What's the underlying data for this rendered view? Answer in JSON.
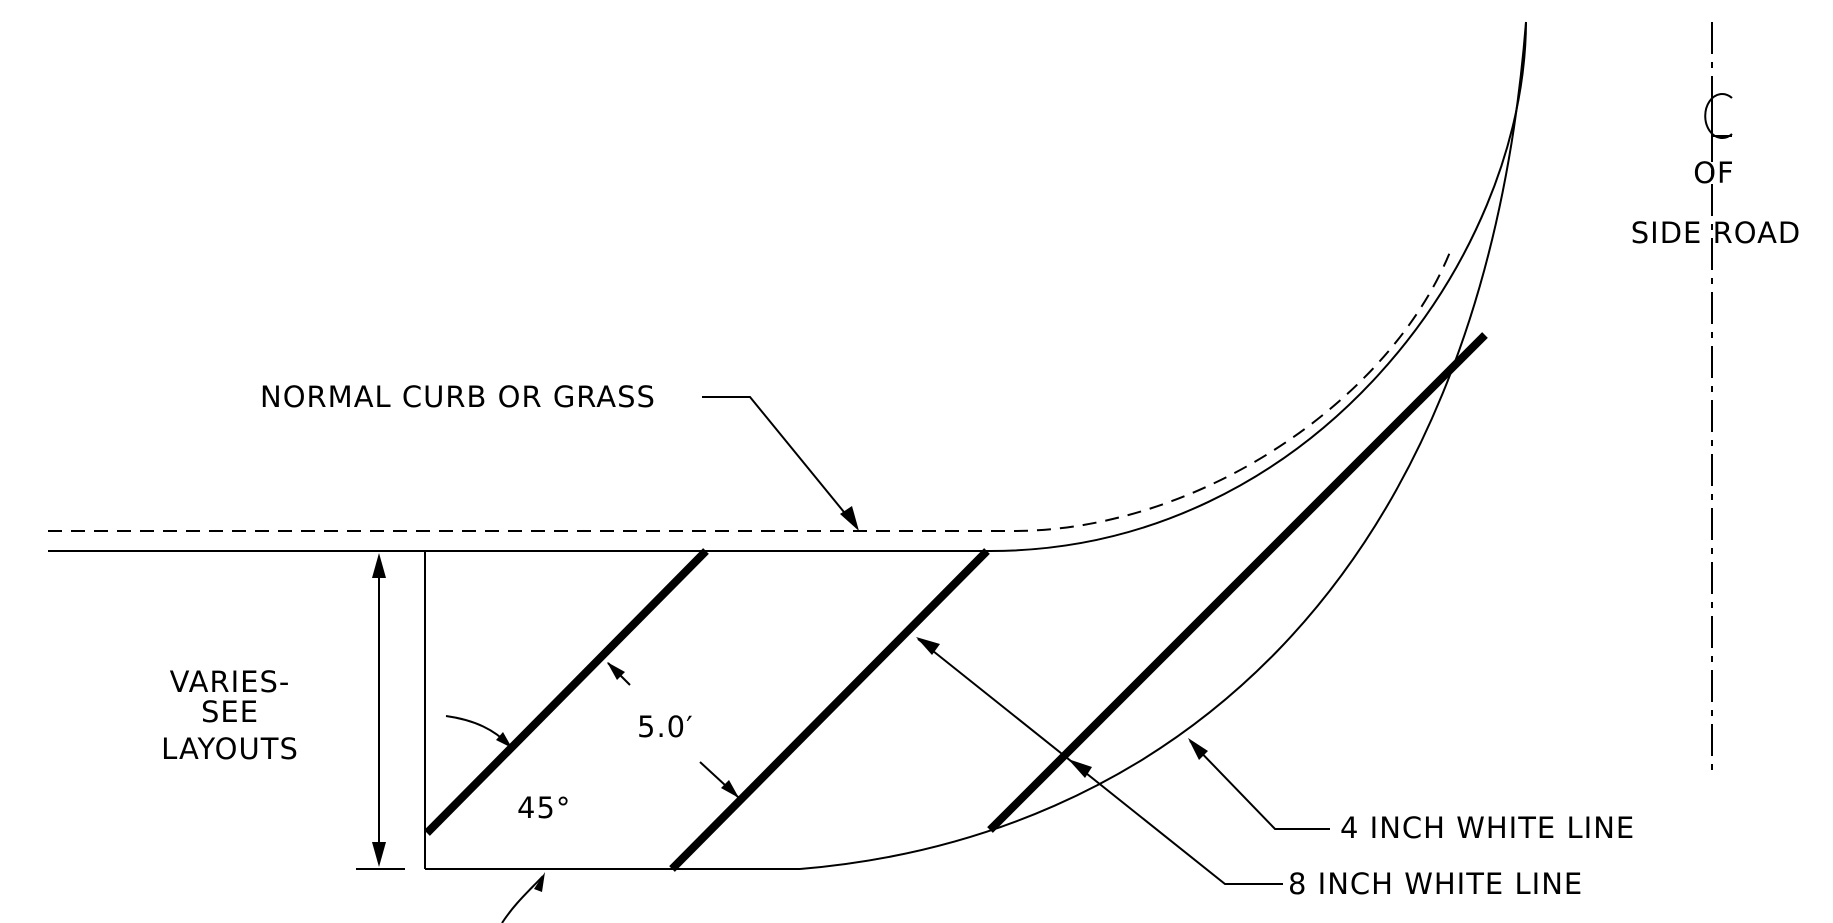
{
  "labels": {
    "normal_curb": "NORMAL CURB OR GRASS",
    "varies_1": "VARIES-",
    "varies_2": "SEE",
    "varies_3": "LAYOUTS",
    "spacing": "5.0′",
    "angle": "45°",
    "cl_symbol": "CL",
    "cl_of": "OF",
    "cl_side_road": "SIDE ROAD",
    "four_inch": "4 INCH WHITE LINE",
    "eight_inch": "8 INCH WHITE LINE"
  },
  "colors": {
    "ink": "#000000",
    "background": "#ffffff"
  }
}
